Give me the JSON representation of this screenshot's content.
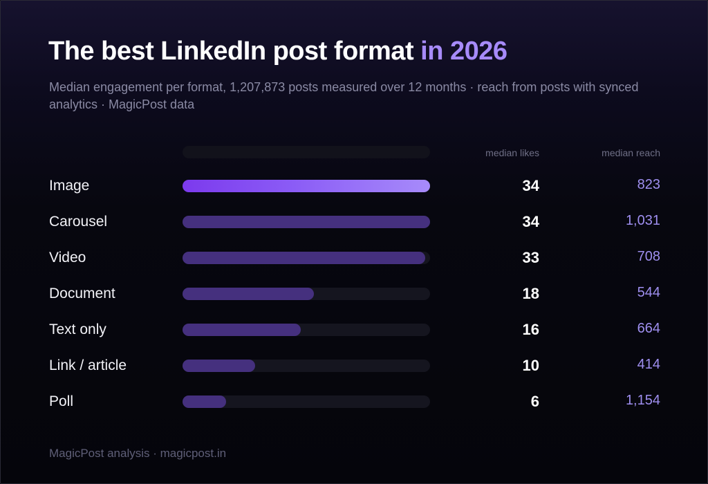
{
  "header": {
    "title_main": "The best LinkedIn post format",
    "title_accent": "in 2026",
    "subtitle": "Median engagement per format, 1,207,873 posts measured over 12 months · reach from posts with synced analytics · MagicPost data"
  },
  "columns": {
    "likes": "median likes",
    "reach": "median reach"
  },
  "footer": "MagicPost analysis · magicpost.in",
  "colors": {
    "background": "#05050b",
    "accent": "#a78bfa",
    "highlight_bar": "#8b5cf6",
    "bar": "#45307e",
    "track": "#15151f",
    "reach_text": "#9f8ff0"
  },
  "chart_data": {
    "type": "bar",
    "orientation": "horizontal",
    "title": "The best LinkedIn post format in 2026",
    "xlim": [
      0,
      34
    ],
    "grid": false,
    "highlight_category": "Image",
    "rows": [
      {
        "format": "Image",
        "likes": 34,
        "reach": "823",
        "bar": 34
      },
      {
        "format": "Carousel",
        "likes": 34,
        "reach": "1,031",
        "bar": 34
      },
      {
        "format": "Video",
        "likes": 33,
        "reach": "708",
        "bar": 33.3
      },
      {
        "format": "Document",
        "likes": 18,
        "reach": "544",
        "bar": 18
      },
      {
        "format": "Text only",
        "likes": 16,
        "reach": "664",
        "bar": 16.2
      },
      {
        "format": "Link / article",
        "likes": 10,
        "reach": "414",
        "bar": 10
      },
      {
        "format": "Poll",
        "likes": 6,
        "reach": "1,154",
        "bar": 6
      }
    ]
  }
}
